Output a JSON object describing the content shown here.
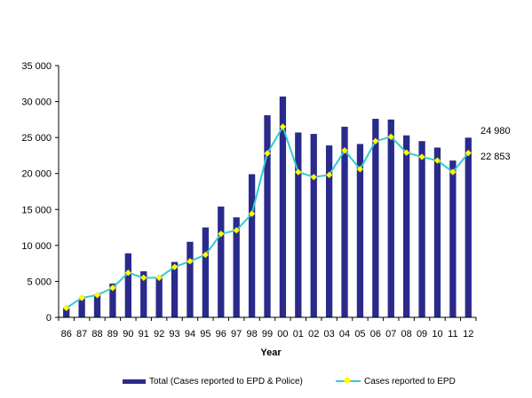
{
  "chart_data": {
    "type": "bar",
    "title": "",
    "xlabel": "Year",
    "ylabel": "",
    "ylim": [
      0,
      35000
    ],
    "yticks": [
      "0",
      "5 000",
      "10 000",
      "15 000",
      "20 000",
      "25 000",
      "30 000",
      "35 000"
    ],
    "categories": [
      "86",
      "87",
      "88",
      "89",
      "90",
      "91",
      "92",
      "93",
      "94",
      "95",
      "96",
      "97",
      "98",
      "99",
      "00",
      "01",
      "02",
      "03",
      "04",
      "05",
      "06",
      "07",
      "08",
      "09",
      "10",
      "11",
      "12"
    ],
    "series": [
      {
        "name": "Total (Cases reported to EPD & Police)",
        "type": "bar",
        "color": "#2a2a8c",
        "values": [
          1300,
          2600,
          3200,
          4700,
          8900,
          6400,
          5600,
          7700,
          10500,
          12500,
          15400,
          13900,
          19900,
          28100,
          30700,
          25700,
          25500,
          23900,
          26500,
          24100,
          27600,
          27500,
          25300,
          24500,
          23600,
          21800,
          24980
        ]
      },
      {
        "name": "Cases reported to EPD",
        "type": "line",
        "color": "#33cccc",
        "marker_color": "#ffff00",
        "values": [
          1300,
          2700,
          3100,
          4100,
          6200,
          5500,
          5500,
          7000,
          7800,
          8700,
          11600,
          12100,
          14400,
          22800,
          26500,
          20200,
          19500,
          19800,
          23200,
          20600,
          24500,
          25100,
          22900,
          22300,
          21800,
          20200,
          22853
        ]
      }
    ],
    "annotations": [
      "24 980",
      "22 853"
    ],
    "grid": false,
    "legend_position": "bottom"
  }
}
